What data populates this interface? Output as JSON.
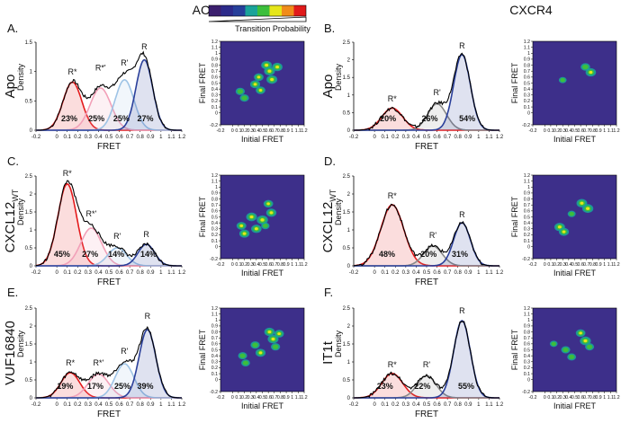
{
  "column_titles": {
    "left": "ACKR3",
    "right": "CXCR4"
  },
  "colorbar": {
    "label": "Transition Probability",
    "colors": [
      "#3b1f6e",
      "#2c2a8a",
      "#263f9a",
      "#1aa39a",
      "#3cbf3c",
      "#e6e61a",
      "#f08c1a",
      "#e01a1a"
    ]
  },
  "heatmap_bg": "#3d2f8a",
  "line_colors": {
    "total": "#000000",
    "R*": "#e41a1c",
    "R*'": "#f2a0b8",
    "R'": "#9fc4e6",
    "R": "#2a3f9a",
    "R_cxcr4_mid": "#8a8a8a"
  },
  "panels": [
    {
      "id": "A",
      "letter": "A.",
      "ylabel": "Apo",
      "sub": "",
      "receptor": "ACKR3",
      "chart_data": {
        "type": "line",
        "title": "",
        "xlabel": "FRET",
        "ylabel": "Density",
        "xlim": [
          -0.2,
          1.2
        ],
        "ylim": [
          0,
          1.5
        ],
        "xticks": [
          "-0.2",
          "0",
          "0.1",
          "0.2",
          "0.3",
          "0.4",
          "0.5",
          "0.6",
          "0.7",
          "0.8",
          "0.9",
          "1",
          "1.1",
          "1.2"
        ],
        "yticks": [
          "0",
          "0.5",
          "1",
          "1.5"
        ],
        "states": [
          {
            "name": "R*",
            "label": "R*",
            "color": "#e41a1c",
            "mu": 0.15,
            "sigma": 0.09,
            "amp": 0.82,
            "pct": "23%",
            "pctx": 0.12
          },
          {
            "name": "R*'",
            "label": "R*'",
            "color": "#f2a0b8",
            "mu": 0.42,
            "sigma": 0.1,
            "amp": 0.72,
            "pct": "25%",
            "pctx": 0.38
          },
          {
            "name": "R'",
            "label": "R'",
            "color": "#9fc4e6",
            "mu": 0.65,
            "sigma": 0.09,
            "amp": 0.86,
            "pct": "25%",
            "pctx": 0.62
          },
          {
            "name": "R",
            "label": "R",
            "color": "#2a3f9a",
            "mu": 0.84,
            "sigma": 0.08,
            "amp": 1.2,
            "pct": "27%",
            "pctx": 0.85
          }
        ],
        "label_y": [
          0.95,
          1.02,
          1.1,
          1.38
        ],
        "heatmap": {
          "xlabel": "Initial FRET",
          "ylabel": "Final FRET",
          "ticks": [
            "-0.2",
            "0",
            "0.1",
            "0.2",
            "0.3",
            "0.4",
            "0.5",
            "0.6",
            "0.7",
            "0.8",
            "0.9",
            "1",
            "1.1",
            "1.2"
          ],
          "spots": [
            [
              0.13,
              0.36,
              0.5
            ],
            [
              0.2,
              0.25,
              0.5
            ],
            [
              0.38,
              0.48,
              0.7
            ],
            [
              0.47,
              0.38,
              0.6
            ],
            [
              0.57,
              0.8,
              0.85
            ],
            [
              0.62,
              0.7,
              0.9
            ],
            [
              0.66,
              0.56,
              0.9
            ],
            [
              0.75,
              0.77,
              0.8
            ],
            [
              0.44,
              0.6,
              0.6
            ]
          ]
        }
      }
    },
    {
      "id": "B",
      "letter": "B.",
      "ylabel": "Apo",
      "sub": "",
      "receptor": "CXCR4",
      "chart_data": {
        "type": "line",
        "title": "",
        "xlabel": "FRET",
        "ylabel": "Density",
        "xlim": [
          -0.2,
          1.2
        ],
        "ylim": [
          0,
          2.5
        ],
        "xticks": [
          "-0.2",
          "0",
          "0.1",
          "0.2",
          "0.3",
          "0.4",
          "0.5",
          "0.6",
          "0.7",
          "0.8",
          "0.9",
          "1",
          "1.1",
          "1.2"
        ],
        "yticks": [
          "0",
          "0.5",
          "1",
          "1.5",
          "2",
          "2.5"
        ],
        "states": [
          {
            "name": "R*",
            "label": "R*",
            "color": "#e41a1c",
            "mu": 0.17,
            "sigma": 0.1,
            "amp": 0.63,
            "pct": "20%",
            "pctx": 0.13
          },
          {
            "name": "R'",
            "label": "R'",
            "color": "#8a8a8a",
            "mu": 0.6,
            "sigma": 0.09,
            "amp": 0.75,
            "pct": "26%",
            "pctx": 0.53
          },
          {
            "name": "R",
            "label": "R",
            "color": "#2a3f9a",
            "mu": 0.84,
            "sigma": 0.08,
            "amp": 2.15,
            "pct": "54%",
            "pctx": 0.89
          }
        ],
        "label_y": [
          0.82,
          1.0,
          2.32
        ],
        "heatmap": {
          "xlabel": "Initial FRET",
          "ylabel": "Final FRET",
          "ticks": [
            "-0.2",
            "0",
            "0.1",
            "0.2",
            "0.3",
            "0.4",
            "0.5",
            "0.6",
            "0.7",
            "0.8",
            "0.9",
            "1",
            "1.1",
            "1.2"
          ],
          "spots": [
            [
              0.68,
              0.77,
              0.55
            ],
            [
              0.77,
              0.68,
              0.8
            ],
            [
              0.3,
              0.55,
              0.15
            ]
          ]
        }
      }
    },
    {
      "id": "C",
      "letter": "C.",
      "ylabel": "CXCL12",
      "sub": "WT",
      "receptor": "ACKR3",
      "chart_data": {
        "type": "line",
        "title": "",
        "xlabel": "FRET",
        "ylabel": "Density",
        "xlim": [
          -0.2,
          1.2
        ],
        "ylim": [
          0,
          2.5
        ],
        "xticks": [
          "-0.2",
          "0",
          "0.1",
          "0.2",
          "0.3",
          "0.4",
          "0.5",
          "0.6",
          "0.7",
          "0.8",
          "0.9",
          "1",
          "1.1",
          "1.2"
        ],
        "yticks": [
          "0",
          "0.5",
          "1",
          "1.5",
          "2",
          "2.5"
        ],
        "states": [
          {
            "name": "R*",
            "label": "R*",
            "color": "#e41a1c",
            "mu": 0.1,
            "sigma": 0.09,
            "amp": 2.28,
            "pct": "45%",
            "pctx": 0.05
          },
          {
            "name": "R*'",
            "label": "R*'",
            "color": "#f2a0b8",
            "mu": 0.33,
            "sigma": 0.1,
            "amp": 1.05,
            "pct": "27%",
            "pctx": 0.32
          },
          {
            "name": "R'",
            "label": "R'",
            "color": "#9fc4e6",
            "mu": 0.58,
            "sigma": 0.09,
            "amp": 0.5,
            "pct": "14%",
            "pctx": 0.57
          },
          {
            "name": "R",
            "label": "R",
            "color": "#2a3f9a",
            "mu": 0.86,
            "sigma": 0.08,
            "amp": 0.6,
            "pct": "14%",
            "pctx": 0.88
          }
        ],
        "label_y": [
          2.5,
          1.38,
          0.75,
          0.8
        ],
        "heatmap": {
          "xlabel": "Initial FRET",
          "ylabel": "Final FRET",
          "ticks": [
            "-0.2",
            "0",
            "0.1",
            "0.2",
            "0.3",
            "0.4",
            "0.5",
            "0.6",
            "0.7",
            "0.8",
            "0.9",
            "1",
            "1.1",
            "1.2"
          ],
          "spots": [
            [
              0.15,
              0.35,
              0.65
            ],
            [
              0.2,
              0.22,
              0.75
            ],
            [
              0.32,
              0.5,
              0.9
            ],
            [
              0.4,
              0.3,
              0.8
            ],
            [
              0.5,
              0.45,
              1.0
            ],
            [
              0.6,
              0.72,
              0.6
            ],
            [
              0.65,
              0.57,
              0.75
            ],
            [
              0.55,
              0.35,
              0.3
            ]
          ]
        }
      }
    },
    {
      "id": "D",
      "letter": "D.",
      "ylabel": "CXCL12",
      "sub": "WT",
      "receptor": "CXCR4",
      "chart_data": {
        "type": "line",
        "title": "",
        "xlabel": "FRET",
        "ylabel": "Density",
        "xlim": [
          -0.2,
          1.2
        ],
        "ylim": [
          0,
          2.5
        ],
        "xticks": [
          "-0.2",
          "0",
          "0.1",
          "0.2",
          "0.3",
          "0.4",
          "0.5",
          "0.6",
          "0.7",
          "0.8",
          "0.9",
          "1",
          "1.1",
          "1.2"
        ],
        "yticks": [
          "0",
          "0.5",
          "1",
          "1.5",
          "2",
          "2.5"
        ],
        "states": [
          {
            "name": "R*",
            "label": "R*",
            "color": "#e41a1c",
            "mu": 0.17,
            "sigma": 0.11,
            "amp": 1.7,
            "pct": "48%",
            "pctx": 0.12
          },
          {
            "name": "R'",
            "label": "R'",
            "color": "#8a8a8a",
            "mu": 0.56,
            "sigma": 0.09,
            "amp": 0.55,
            "pct": "20%",
            "pctx": 0.52
          },
          {
            "name": "R",
            "label": "R",
            "color": "#2a3f9a",
            "mu": 0.84,
            "sigma": 0.08,
            "amp": 1.2,
            "pct": "31%",
            "pctx": 0.82
          }
        ],
        "label_y": [
          1.88,
          0.78,
          1.35
        ],
        "heatmap": {
          "xlabel": "Initial FRET",
          "ylabel": "Final FRET",
          "ticks": [
            "-0.2",
            "0",
            "0.1",
            "0.2",
            "0.3",
            "0.4",
            "0.5",
            "0.6",
            "0.7",
            "0.8",
            "0.9",
            "1",
            "1.1",
            "1.2"
          ],
          "spots": [
            [
              0.25,
              0.33,
              0.85
            ],
            [
              0.32,
              0.25,
              0.7
            ],
            [
              0.62,
              0.73,
              0.85
            ],
            [
              0.72,
              0.64,
              0.95
            ],
            [
              0.45,
              0.55,
              0.2
            ]
          ]
        }
      }
    },
    {
      "id": "E",
      "letter": "E.",
      "ylabel": "VUF16840",
      "sub": "",
      "receptor": "ACKR3",
      "chart_data": {
        "type": "line",
        "title": "",
        "xlabel": "FRET",
        "ylabel": "Density",
        "xlim": [
          -0.2,
          1.2
        ],
        "ylim": [
          0,
          2.5
        ],
        "xticks": [
          "-0.2",
          "0",
          "0.1",
          "0.2",
          "0.3",
          "0.4",
          "0.5",
          "0.6",
          "0.7",
          "0.8",
          "0.9",
          "1",
          "1.1",
          "1.2"
        ],
        "yticks": [
          "0",
          "0.5",
          "1",
          "1.5",
          "2",
          "2.5"
        ],
        "states": [
          {
            "name": "R*",
            "label": "R*",
            "color": "#e41a1c",
            "mu": 0.13,
            "sigma": 0.09,
            "amp": 0.7,
            "pct": "19%",
            "pctx": 0.08
          },
          {
            "name": "R*'",
            "label": "R*'",
            "color": "#f2a0b8",
            "mu": 0.4,
            "sigma": 0.1,
            "amp": 0.66,
            "pct": "17%",
            "pctx": 0.37
          },
          {
            "name": "R'",
            "label": "R'",
            "color": "#9fc4e6",
            "mu": 0.65,
            "sigma": 0.09,
            "amp": 0.95,
            "pct": "25%",
            "pctx": 0.63
          },
          {
            "name": "R",
            "label": "R",
            "color": "#2a3f9a",
            "mu": 0.87,
            "sigma": 0.08,
            "amp": 1.9,
            "pct": "39%",
            "pctx": 0.85
          }
        ],
        "label_y": [
          0.9,
          0.9,
          1.22,
          2.2
        ],
        "heatmap": {
          "xlabel": "Initial FRET",
          "ylabel": "Final FRET",
          "ticks": [
            "-0.2",
            "0",
            "0.1",
            "0.2",
            "0.3",
            "0.4",
            "0.5",
            "0.6",
            "0.7",
            "0.8",
            "0.9",
            "1",
            "1.1",
            "1.2"
          ],
          "spots": [
            [
              0.17,
              0.4,
              0.45
            ],
            [
              0.22,
              0.28,
              0.4
            ],
            [
              0.38,
              0.58,
              0.5
            ],
            [
              0.47,
              0.45,
              0.7
            ],
            [
              0.62,
              0.8,
              0.8
            ],
            [
              0.68,
              0.68,
              0.9
            ],
            [
              0.72,
              0.55,
              0.5
            ],
            [
              0.78,
              0.77,
              0.6
            ]
          ]
        }
      }
    },
    {
      "id": "F",
      "letter": "F.",
      "ylabel": "IT1t",
      "sub": "",
      "receptor": "CXCR4",
      "chart_data": {
        "type": "line",
        "title": "",
        "xlabel": "FRET",
        "ylabel": "Density",
        "xlim": [
          -0.2,
          1.2
        ],
        "ylim": [
          0,
          2.5
        ],
        "xticks": [
          "-0.2",
          "0",
          "0.1",
          "0.2",
          "0.3",
          "0.4",
          "0.5",
          "0.6",
          "0.7",
          "0.8",
          "0.9",
          "1",
          "1.1",
          "1.2"
        ],
        "yticks": [
          "0",
          "0.5",
          "1",
          "1.5",
          "2",
          "2.5"
        ],
        "states": [
          {
            "name": "R*",
            "label": "R*",
            "color": "#e41a1c",
            "mu": 0.17,
            "sigma": 0.1,
            "amp": 0.68,
            "pct": "23%",
            "pctx": 0.1
          },
          {
            "name": "R'",
            "label": "R'",
            "color": "#8a8a8a",
            "mu": 0.5,
            "sigma": 0.09,
            "amp": 0.62,
            "pct": "22%",
            "pctx": 0.46
          },
          {
            "name": "R",
            "label": "R",
            "color": "#2a3f9a",
            "mu": 0.84,
            "sigma": 0.08,
            "amp": 2.15,
            "pct": "55%",
            "pctx": 0.88
          }
        ],
        "label_y": [
          0.85,
          0.85,
          2.35
        ],
        "heatmap": {
          "xlabel": "Initial FRET",
          "ylabel": "Final FRET",
          "ticks": [
            "-0.2",
            "0",
            "0.1",
            "0.2",
            "0.3",
            "0.4",
            "0.5",
            "0.6",
            "0.7",
            "0.8",
            "0.9",
            "1",
            "1.1",
            "1.2"
          ],
          "spots": [
            [
              0.35,
              0.5,
              0.45
            ],
            [
              0.45,
              0.38,
              0.4
            ],
            [
              0.6,
              0.78,
              0.6
            ],
            [
              0.68,
              0.65,
              0.95
            ],
            [
              0.75,
              0.55,
              0.45
            ],
            [
              0.15,
              0.6,
              0.15
            ]
          ]
        }
      }
    }
  ]
}
